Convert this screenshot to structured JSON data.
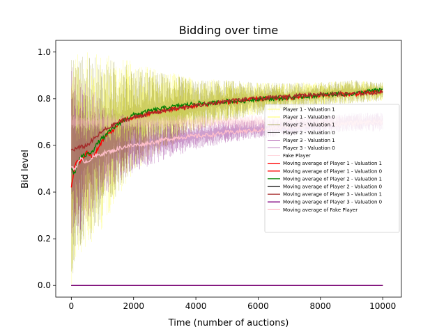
{
  "chart_data": {
    "type": "line",
    "title": "Bidding over time",
    "xlabel": "Time (number of auctions)",
    "ylabel": "Bid level",
    "xlim": [
      -500,
      10600
    ],
    "ylim": [
      -0.05,
      1.05
    ],
    "xticks": [
      0,
      2000,
      4000,
      6000,
      8000,
      10000
    ],
    "xtick_labels": [
      "0",
      "2000",
      "4000",
      "6000",
      "8000",
      "10000"
    ],
    "yticks": [
      0.0,
      0.2,
      0.4,
      0.6,
      0.8,
      1.0
    ],
    "ytick_labels": [
      "0.0",
      "0.2",
      "0.4",
      "0.6",
      "0.8",
      "1.0"
    ],
    "grid": false,
    "legend_position": "center-right",
    "series": [
      {
        "name": "Player 1 - Valuation 1",
        "color": "#ffff00",
        "style": "raw-bids",
        "x": [
          0,
          200,
          500,
          1000,
          1500,
          2000,
          3000,
          4000,
          5000,
          6000,
          7000,
          8000,
          9000,
          10000
        ],
        "values": [
          0.5,
          0.55,
          0.58,
          0.62,
          0.68,
          0.72,
          0.75,
          0.77,
          0.79,
          0.8,
          0.81,
          0.82,
          0.83,
          0.83
        ],
        "spread": [
          0.5,
          0.45,
          0.42,
          0.38,
          0.3,
          0.24,
          0.17,
          0.12,
          0.09,
          0.07,
          0.06,
          0.05,
          0.05,
          0.04
        ]
      },
      {
        "name": "Player 1 - Valuation 0",
        "color": "#ffff00",
        "style": "raw-bids",
        "x": [
          0,
          10000
        ],
        "values": [
          0.0,
          0.0
        ],
        "spread": [
          0,
          0
        ]
      },
      {
        "name": "Player 2 - Valuation 1",
        "color": "#808000",
        "style": "raw-bids",
        "x": [
          0,
          200,
          500,
          1000,
          1500,
          2000,
          3000,
          4000,
          5000,
          6000,
          7000,
          8000,
          9000,
          10000
        ],
        "values": [
          0.5,
          0.55,
          0.58,
          0.62,
          0.68,
          0.72,
          0.75,
          0.77,
          0.79,
          0.8,
          0.81,
          0.82,
          0.83,
          0.83
        ],
        "spread": [
          0.5,
          0.45,
          0.4,
          0.36,
          0.28,
          0.22,
          0.16,
          0.11,
          0.09,
          0.07,
          0.06,
          0.05,
          0.05,
          0.04
        ]
      },
      {
        "name": "Player 2 - Valuation 0",
        "color": "#000000",
        "style": "raw-bids",
        "x": [
          0,
          10000
        ],
        "values": [
          0.0,
          0.0
        ],
        "spread": [
          0,
          0
        ]
      },
      {
        "name": "Player 3 - Valuation 1",
        "color": "#800080",
        "style": "raw-bids",
        "x": [
          0,
          200,
          500,
          1000,
          1500,
          2000,
          3000,
          4000,
          5000,
          6000,
          7000,
          8000,
          9000,
          10000
        ],
        "values": [
          0.55,
          0.56,
          0.57,
          0.58,
          0.59,
          0.6,
          0.62,
          0.64,
          0.66,
          0.67,
          0.68,
          0.69,
          0.7,
          0.7
        ],
        "spread": [
          0.4,
          0.35,
          0.3,
          0.22,
          0.15,
          0.12,
          0.08,
          0.06,
          0.05,
          0.04,
          0.04,
          0.04,
          0.04,
          0.04
        ]
      },
      {
        "name": "Player 3 - Valuation 0",
        "color": "#800080",
        "style": "raw-bids",
        "x": [
          0,
          10000
        ],
        "values": [
          0.0,
          0.0
        ],
        "spread": [
          0,
          0
        ]
      },
      {
        "name": "Fake Player",
        "color": "#ffc0cb",
        "style": "raw-bids",
        "x": [
          0,
          10000
        ],
        "values": [
          0.7,
          0.7
        ],
        "spread": [
          0.03,
          0.03
        ]
      },
      {
        "name": "Moving average of Player 1 - Valuation 1",
        "color": "#ff0000",
        "style": "line",
        "x": [
          0,
          100,
          200,
          300,
          500,
          700,
          900,
          1100,
          1300,
          1500,
          1700,
          2000,
          2300,
          2600,
          3000,
          3500,
          4000,
          4500,
          5000,
          5500,
          6000,
          6500,
          7000,
          7500,
          8000,
          8500,
          9000,
          9500,
          10000
        ],
        "values": [
          0.42,
          0.5,
          0.54,
          0.53,
          0.57,
          0.55,
          0.6,
          0.64,
          0.66,
          0.69,
          0.71,
          0.72,
          0.73,
          0.74,
          0.75,
          0.76,
          0.77,
          0.78,
          0.785,
          0.79,
          0.8,
          0.8,
          0.805,
          0.81,
          0.815,
          0.82,
          0.82,
          0.825,
          0.83
        ]
      },
      {
        "name": "Moving average of Player 1 - Valuation 0",
        "color": "#ff0000",
        "style": "line",
        "x": [
          0,
          10000
        ],
        "values": [
          0.0,
          0.0
        ]
      },
      {
        "name": "Moving average of Player 2 - Valuation 1",
        "color": "#008000",
        "style": "line",
        "x": [
          0,
          100,
          200,
          300,
          500,
          700,
          900,
          1100,
          1300,
          1500,
          1700,
          2000,
          2300,
          2600,
          3000,
          3500,
          4000,
          4500,
          5000,
          5500,
          6000,
          6500,
          7000,
          7500,
          8000,
          8500,
          9000,
          9500,
          10000
        ],
        "values": [
          0.5,
          0.48,
          0.52,
          0.55,
          0.56,
          0.58,
          0.62,
          0.64,
          0.67,
          0.69,
          0.71,
          0.73,
          0.74,
          0.75,
          0.76,
          0.77,
          0.78,
          0.78,
          0.79,
          0.79,
          0.8,
          0.8,
          0.805,
          0.81,
          0.815,
          0.82,
          0.82,
          0.83,
          0.84
        ]
      },
      {
        "name": "Moving average of Player 2 - Valuation 0",
        "color": "#000000",
        "style": "line",
        "x": [
          0,
          10000
        ],
        "values": [
          0.0,
          0.0
        ]
      },
      {
        "name": "Moving average of Player 3 - Valuation 1",
        "color": "#a52a2a",
        "style": "line",
        "x": [
          0,
          500,
          1000,
          1500,
          2000,
          3000,
          4000,
          5000,
          6000,
          7000,
          8000,
          9000,
          10000
        ],
        "values": [
          0.58,
          0.6,
          0.66,
          0.7,
          0.72,
          0.75,
          0.77,
          0.79,
          0.8,
          0.81,
          0.82,
          0.82,
          0.83
        ]
      },
      {
        "name": "Moving average of Player 3 - Valuation 0",
        "color": "#800080",
        "style": "line",
        "x": [
          0,
          10000
        ],
        "values": [
          0.0,
          0.0
        ]
      },
      {
        "name": "Moving average of Fake Player",
        "color": "#ffc0cb",
        "style": "line",
        "x": [
          0,
          100,
          200,
          300,
          500,
          700,
          900,
          1100,
          1300,
          1500,
          1700,
          2000,
          2500,
          3000,
          3500,
          4000,
          4500,
          5000,
          5500,
          6000,
          6500,
          7000,
          7500,
          8000,
          8500,
          9000,
          9500,
          10000
        ],
        "values": [
          0.51,
          0.5,
          0.52,
          0.54,
          0.53,
          0.55,
          0.56,
          0.57,
          0.575,
          0.585,
          0.595,
          0.6,
          0.61,
          0.625,
          0.635,
          0.64,
          0.645,
          0.655,
          0.66,
          0.665,
          0.675,
          0.68,
          0.685,
          0.69,
          0.69,
          0.695,
          0.7,
          0.7
        ]
      }
    ]
  }
}
